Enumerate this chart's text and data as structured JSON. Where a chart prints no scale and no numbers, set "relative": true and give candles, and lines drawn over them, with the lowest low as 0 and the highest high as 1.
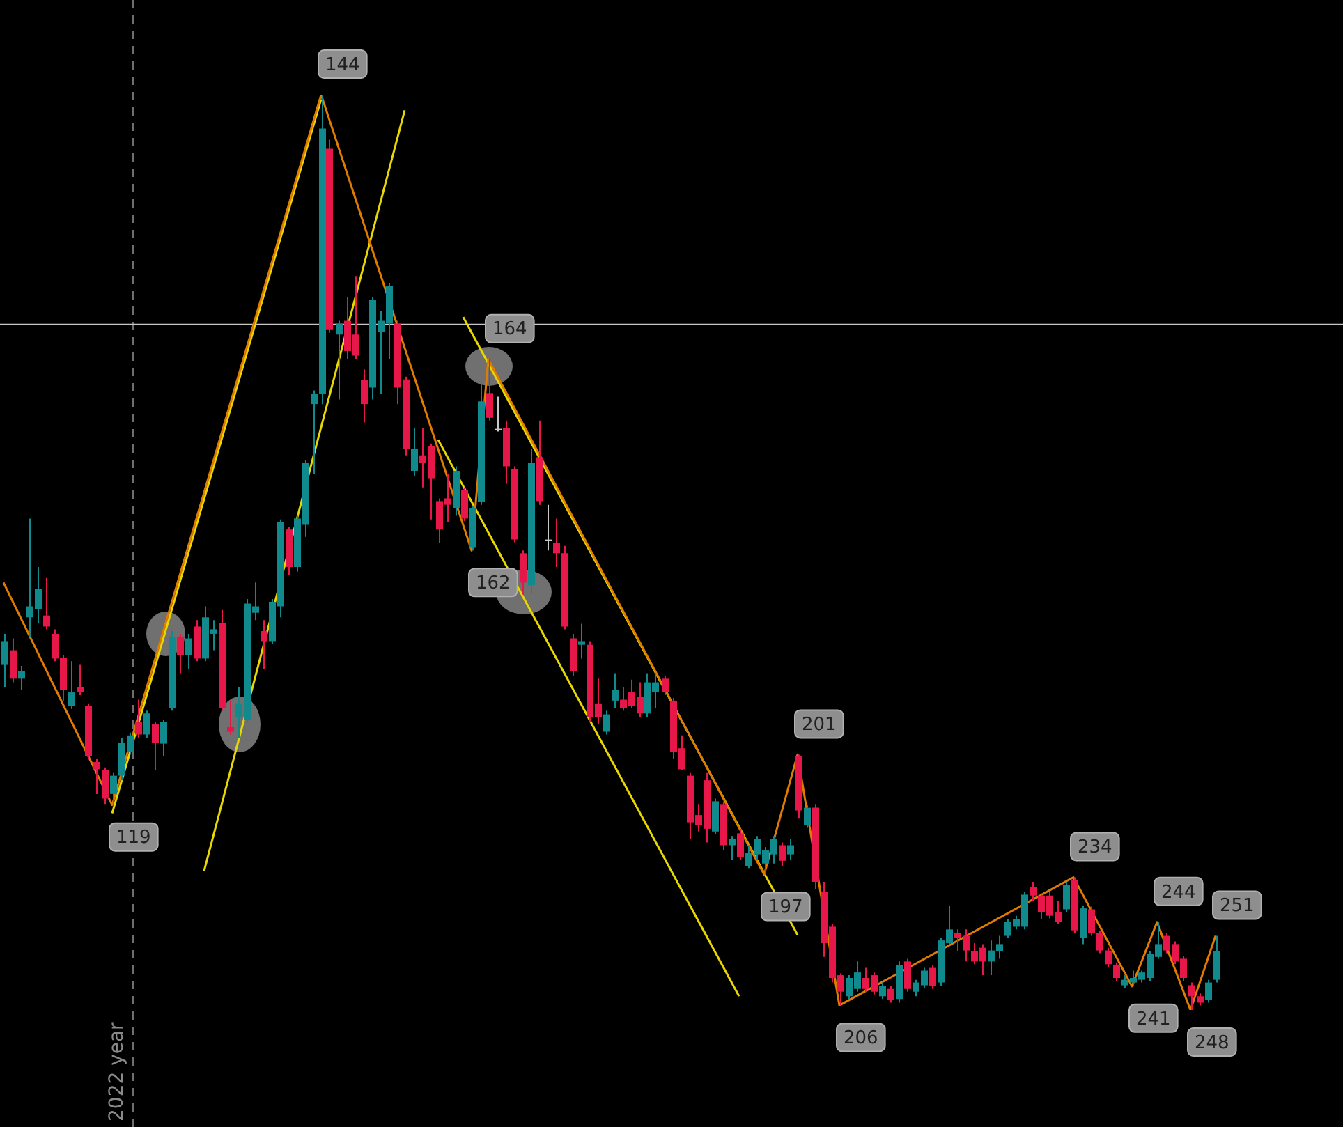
{
  "chart_data": {
    "type": "candlestick",
    "relative": true,
    "categories": [
      null,
      null,
      null,
      null,
      null,
      null,
      null,
      null,
      null,
      null,
      null,
      null,
      null,
      null,
      null,
      null,
      null,
      null,
      null,
      null,
      null,
      null,
      null,
      null,
      null,
      null,
      null,
      null,
      null,
      null,
      null,
      null,
      null,
      null,
      null,
      null,
      null,
      null,
      null,
      null,
      null,
      null,
      null,
      null,
      null,
      null,
      null,
      null,
      null,
      null,
      null,
      null,
      null,
      null,
      null,
      null,
      null,
      null,
      null,
      null,
      null,
      null,
      null,
      null,
      null,
      null,
      null,
      null,
      null,
      null,
      null,
      null,
      null,
      null,
      null,
      null,
      null,
      null,
      null,
      null,
      null,
      null,
      null,
      null,
      null,
      null,
      null,
      null,
      null,
      null,
      null,
      null,
      null,
      null,
      null,
      null,
      null,
      null,
      null,
      null,
      null,
      null,
      null,
      null,
      null,
      null,
      null,
      null,
      null,
      null,
      null,
      null,
      null,
      null,
      null,
      null,
      null,
      null,
      null,
      null,
      null,
      null,
      null,
      null,
      null,
      null,
      null,
      null,
      null,
      null,
      null,
      null,
      null,
      null,
      null,
      null,
      null,
      null,
      null,
      null,
      null,
      null,
      null,
      null,
      null,
      null
    ],
    "ohlc": [
      [
        0.377,
        0.411,
        0.353,
        0.403
      ],
      [
        0.393,
        0.406,
        0.358,
        0.362
      ],
      [
        0.362,
        0.376,
        0.35,
        0.37
      ],
      [
        0.429,
        0.537,
        0.408,
        0.441
      ],
      [
        0.438,
        0.484,
        0.423,
        0.46
      ],
      [
        0.431,
        0.472,
        0.416,
        0.419
      ],
      [
        0.411,
        0.416,
        0.381,
        0.384
      ],
      [
        0.385,
        0.388,
        0.338,
        0.35
      ],
      [
        0.332,
        0.381,
        0.329,
        0.347
      ],
      [
        0.353,
        0.377,
        0.344,
        0.347
      ],
      [
        0.332,
        0.335,
        0.274,
        0.277
      ],
      [
        0.271,
        0.274,
        0.236,
        0.263
      ],
      [
        0.262,
        0.265,
        0.225,
        0.231
      ],
      [
        0.236,
        0.259,
        0.224,
        0.256
      ],
      [
        0.256,
        0.297,
        0.251,
        0.292
      ],
      [
        0.282,
        0.303,
        0.279,
        0.3
      ],
      [
        0.315,
        0.339,
        0.297,
        0.301
      ],
      [
        0.301,
        0.327,
        0.297,
        0.324
      ],
      [
        0.312,
        0.315,
        0.262,
        0.292
      ],
      [
        0.291,
        0.317,
        0.277,
        0.315
      ],
      [
        0.33,
        0.414,
        0.327,
        0.408
      ],
      [
        0.408,
        0.411,
        0.368,
        0.388
      ],
      [
        0.388,
        0.411,
        0.373,
        0.406
      ],
      [
        0.419,
        0.426,
        0.381,
        0.384
      ],
      [
        0.384,
        0.441,
        0.381,
        0.429
      ],
      [
        0.411,
        0.426,
        0.393,
        0.416
      ],
      [
        0.423,
        0.437,
        0.327,
        0.33
      ],
      [
        0.309,
        0.338,
        0.301,
        0.304
      ],
      [
        0.32,
        0.353,
        0.297,
        0.335
      ],
      [
        0.317,
        0.449,
        0.314,
        0.444
      ],
      [
        0.434,
        0.467,
        0.426,
        0.441
      ],
      [
        0.414,
        0.426,
        0.373,
        0.403
      ],
      [
        0.403,
        0.449,
        0.4,
        0.446
      ],
      [
        0.441,
        0.536,
        0.429,
        0.533
      ],
      [
        0.525,
        0.528,
        0.475,
        0.484
      ],
      [
        0.484,
        0.54,
        0.479,
        0.537
      ],
      [
        0.53,
        0.601,
        0.517,
        0.598
      ],
      [
        0.662,
        0.677,
        0.586,
        0.673
      ],
      [
        0.673,
        1,
        0.662,
        0.963
      ],
      [
        0.941,
        0.951,
        0.74,
        0.743
      ],
      [
        0.738,
        0.753,
        0.667,
        0.75
      ],
      [
        0.753,
        0.779,
        0.711,
        0.72
      ],
      [
        0.738,
        0.802,
        0.711,
        0.715
      ],
      [
        0.688,
        0.7,
        0.642,
        0.662
      ],
      [
        0.68,
        0.779,
        0.667,
        0.776
      ],
      [
        0.741,
        0.764,
        0.673,
        0.753
      ],
      [
        0.75,
        0.794,
        0.711,
        0.791
      ],
      [
        0.75,
        0.753,
        0.662,
        0.68
      ],
      [
        0.689,
        0.692,
        0.606,
        0.613
      ],
      [
        0.589,
        0.636,
        0.583,
        0.613
      ],
      [
        0.606,
        0.636,
        0.571,
        0.598
      ],
      [
        0.616,
        0.619,
        0.536,
        0.581
      ],
      [
        0.556,
        0.559,
        0.51,
        0.525
      ],
      [
        0.559,
        0.586,
        0.533,
        0.552
      ],
      [
        0.548,
        0.594,
        0.54,
        0.589
      ],
      [
        0.568,
        0.571,
        0.534,
        0.537
      ],
      [
        0.505,
        0.551,
        0.502,
        0.548
      ],
      [
        0.555,
        0.685,
        0.552,
        0.665
      ],
      [
        0.674,
        0.711,
        0.644,
        0.647
      ],
      [
        0.635,
        0.67,
        0.632,
        0.635
      ],
      [
        0.636,
        0.644,
        0.575,
        0.594
      ],
      [
        0.591,
        0.594,
        0.511,
        0.514
      ],
      [
        0.499,
        0.502,
        0.454,
        0.467
      ],
      [
        0.464,
        0.613,
        0.454,
        0.598
      ],
      [
        0.604,
        0.644,
        0.552,
        0.556
      ],
      [
        0.514,
        0.552,
        0.502,
        0.514
      ],
      [
        0.51,
        0.537,
        0.484,
        0.499
      ],
      [
        0.499,
        0.507,
        0.416,
        0.419
      ],
      [
        0.406,
        0.411,
        0.365,
        0.37
      ],
      [
        0.399,
        0.422,
        0.384,
        0.403
      ],
      [
        0.399,
        0.403,
        0.315,
        0.32
      ],
      [
        0.335,
        0.362,
        0.312,
        0.32
      ],
      [
        0.304,
        0.327,
        0.301,
        0.323
      ],
      [
        0.338,
        0.368,
        0.33,
        0.35
      ],
      [
        0.339,
        0.353,
        0.327,
        0.33
      ],
      [
        0.347,
        0.361,
        0.33,
        0.332
      ],
      [
        0.342,
        0.358,
        0.32,
        0.324
      ],
      [
        0.324,
        0.368,
        0.32,
        0.358
      ],
      [
        0.347,
        0.368,
        0.33,
        0.358
      ],
      [
        0.362,
        0.365,
        0.344,
        0.347
      ],
      [
        0.338,
        0.341,
        0.274,
        0.282
      ],
      [
        0.286,
        0.3,
        0.262,
        0.263
      ],
      [
        0.256,
        0.259,
        0.187,
        0.205
      ],
      [
        0.213,
        0.225,
        0.195,
        0.202
      ],
      [
        0.251,
        0.259,
        0.183,
        0.198
      ],
      [
        0.195,
        0.231,
        0.192,
        0.228
      ],
      [
        0.225,
        0.228,
        0.175,
        0.18
      ],
      [
        0.18,
        0.19,
        0.164,
        0.187
      ],
      [
        0.193,
        0.198,
        0.164,
        0.167
      ],
      [
        0.157,
        0.18,
        0.155,
        0.172
      ],
      [
        0.17,
        0.19,
        0.164,
        0.187
      ],
      [
        0.16,
        0.178,
        0.148,
        0.175
      ],
      [
        0.17,
        0.19,
        0.16,
        0.187
      ],
      [
        0.18,
        0.183,
        0.157,
        0.163
      ],
      [
        0.17,
        0.187,
        0.164,
        0.18
      ],
      [
        0.277,
        0.279,
        0.209,
        0.218
      ],
      [
        0.202,
        0.224,
        0.199,
        0.221
      ],
      [
        0.221,
        0.225,
        0.132,
        0.14
      ],
      [
        0.129,
        0.14,
        0.058,
        0.073
      ],
      [
        0.091,
        0.094,
        0.03,
        0.035
      ],
      [
        0.038,
        0.04,
        0.005,
        0.02
      ],
      [
        0.015,
        0.038,
        0.012,
        0.035
      ],
      [
        0.023,
        0.053,
        0.02,
        0.041
      ],
      [
        0.035,
        0.046,
        0.02,
        0.023
      ],
      [
        0.038,
        0.041,
        0.017,
        0.02
      ],
      [
        0.015,
        0.03,
        0.012,
        0.026
      ],
      [
        0.023,
        0.026,
        0.008,
        0.011
      ],
      [
        0.012,
        0.053,
        0.008,
        0.049
      ],
      [
        0.053,
        0.056,
        0.02,
        0.023
      ],
      [
        0.02,
        0.033,
        0.015,
        0.03
      ],
      [
        0.027,
        0.046,
        0.024,
        0.043
      ],
      [
        0.046,
        0.049,
        0.023,
        0.026
      ],
      [
        0.03,
        0.079,
        0.026,
        0.076
      ],
      [
        0.073,
        0.114,
        0.072,
        0.088
      ],
      [
        0.084,
        0.088,
        0.064,
        0.079
      ],
      [
        0.081,
        0.088,
        0.053,
        0.065
      ],
      [
        0.064,
        0.073,
        0.05,
        0.053
      ],
      [
        0.068,
        0.072,
        0.038,
        0.053
      ],
      [
        0.053,
        0.076,
        0.038,
        0.065
      ],
      [
        0.064,
        0.081,
        0.056,
        0.072
      ],
      [
        0.081,
        0.099,
        0.079,
        0.096
      ],
      [
        0.091,
        0.103,
        0.088,
        0.099
      ],
      [
        0.091,
        0.129,
        0.088,
        0.126
      ],
      [
        0.134,
        0.14,
        0.119,
        0.125
      ],
      [
        0.125,
        0.126,
        0.099,
        0.107
      ],
      [
        0.125,
        0.129,
        0.1,
        0.103
      ],
      [
        0.107,
        0.119,
        0.094,
        0.096
      ],
      [
        0.11,
        0.14,
        0.107,
        0.137
      ],
      [
        0.142,
        0.145,
        0.084,
        0.087
      ],
      [
        0.079,
        0.114,
        0.072,
        0.111
      ],
      [
        0.11,
        0.113,
        0.081,
        0.084
      ],
      [
        0.084,
        0.087,
        0.062,
        0.065
      ],
      [
        0.065,
        0.068,
        0.047,
        0.05
      ],
      [
        0.049,
        0.052,
        0.032,
        0.035
      ],
      [
        0.027,
        0.038,
        0.024,
        0.033
      ],
      [
        0.03,
        0.043,
        0.026,
        0.035
      ],
      [
        0.033,
        0.043,
        0.03,
        0.041
      ],
      [
        0.035,
        0.064,
        0.032,
        0.061
      ],
      [
        0.058,
        0.096,
        0.056,
        0.072
      ],
      [
        0.081,
        0.084,
        0.062,
        0.065
      ],
      [
        0.072,
        0.075,
        0.05,
        0.053
      ],
      [
        0.056,
        0.059,
        0.032,
        0.035
      ],
      [
        0.027,
        0.03,
        0,
        0.015
      ],
      [
        0.015,
        0.018,
        0.005,
        0.008
      ],
      [
        0.011,
        0.033,
        0.008,
        0.03
      ],
      [
        0.033,
        0.081,
        0.03,
        0.064
      ]
    ],
    "colors": [
      "#108a8c",
      "#e8174a",
      "#108a8c",
      "#108a8c",
      "#108a8c",
      "#e8174a",
      "#e8174a",
      "#e8174a",
      "#108a8c",
      "#e8174a",
      "#e8174a",
      "#e8174a",
      "#e8174a",
      "#108a8c",
      "#108a8c",
      "#108a8c",
      "#e8174a",
      "#108a8c",
      "#e8174a",
      "#108a8c",
      "#108a8c",
      "#e8174a",
      "#108a8c",
      "#e8174a",
      "#108a8c",
      "#108a8c",
      "#e8174a",
      "#e8174a",
      "#108a8c",
      "#108a8c",
      "#108a8c",
      "#e8174a",
      "#108a8c",
      "#108a8c",
      "#e8174a",
      "#108a8c",
      "#108a8c",
      "#108a8c",
      "#108a8c",
      "#e8174a",
      "#108a8c",
      "#e8174a",
      "#e8174a",
      "#e8174a",
      "#108a8c",
      "#108a8c",
      "#108a8c",
      "#e8174a",
      "#e8174a",
      "#108a8c",
      "#e8174a",
      "#e8174a",
      "#e8174a",
      "#e8174a",
      "#108a8c",
      "#e8174a",
      "#108a8c",
      "#108a8c",
      "#e8174a",
      "#c8c8c8",
      "#e8174a",
      "#e8174a",
      "#e8174a",
      "#108a8c",
      "#e8174a",
      "#c8c8c8",
      "#e8174a",
      "#e8174a",
      "#e8174a",
      "#108a8c",
      "#e8174a",
      "#e8174a",
      "#108a8c",
      "#108a8c",
      "#e8174a",
      "#e8174a",
      "#e8174a",
      "#108a8c",
      "#108a8c",
      "#e8174a",
      "#e8174a",
      "#e8174a",
      "#e8174a",
      "#e8174a",
      "#e8174a",
      "#108a8c",
      "#e8174a",
      "#108a8c",
      "#e8174a",
      "#108a8c",
      "#108a8c",
      "#108a8c",
      "#108a8c",
      "#e8174a",
      "#108a8c",
      "#e8174a",
      "#108a8c",
      "#e8174a",
      "#e8174a",
      "#e8174a",
      "#e8174a",
      "#108a8c",
      "#108a8c",
      "#e8174a",
      "#e8174a",
      "#108a8c",
      "#e8174a",
      "#108a8c",
      "#e8174a",
      "#108a8c",
      "#108a8c",
      "#e8174a",
      "#108a8c",
      "#108a8c",
      "#e8174a",
      "#e8174a",
      "#e8174a",
      "#e8174a",
      "#108a8c",
      "#108a8c",
      "#108a8c",
      "#108a8c",
      "#108a8c",
      "#e8174a",
      "#e8174a",
      "#e8174a",
      "#e8174a",
      "#108a8c",
      "#e8174a",
      "#108a8c",
      "#e8174a",
      "#e8174a",
      "#e8174a",
      "#e8174a",
      "#108a8c",
      "#108a8c",
      "#108a8c",
      "#108a8c",
      "#108a8c",
      "#e8174a",
      "#e8174a",
      "#e8174a",
      "#e8174a",
      "#e8174a",
      "#108a8c",
      "#108a8c"
    ],
    "series": [
      {
        "type": "line",
        "color": "#e07b00",
        "values": [
          0.467,
          null,
          null,
          null,
          null,
          null,
          null,
          null,
          null,
          null,
          null,
          null,
          null,
          0.224,
          null,
          null,
          null,
          null,
          null,
          null,
          null,
          null,
          null,
          null,
          null,
          null,
          null,
          null,
          null,
          null,
          null,
          null,
          null,
          null,
          null,
          null,
          null,
          null,
          1,
          null,
          null,
          null,
          null,
          null,
          null,
          null,
          null,
          null,
          null,
          null,
          null,
          null,
          null,
          null,
          null,
          null,
          0.502,
          null,
          0.711,
          null,
          null,
          null,
          null,
          null,
          null,
          null,
          null,
          null,
          null,
          null,
          null,
          null,
          null,
          null,
          null,
          null,
          null,
          null,
          null,
          null,
          null,
          null,
          null,
          null,
          null,
          null,
          null,
          null,
          null,
          null,
          null,
          0.148,
          null,
          null,
          null,
          0.279,
          null,
          null,
          null,
          null,
          0.005,
          null,
          null,
          null,
          null,
          null,
          null,
          null,
          null,
          null,
          null,
          null,
          null,
          null,
          null,
          null,
          null,
          null,
          null,
          null,
          null,
          null,
          null,
          null,
          null,
          null,
          null,
          null,
          0.145,
          null,
          null,
          null,
          null,
          null,
          null,
          0.026,
          null,
          null,
          0.096,
          null,
          null,
          null,
          0,
          null,
          null,
          0.081
        ],
        "name": null
      },
      {
        "type": "line",
        "color": "#e8d800",
        "values": [
          null,
          null,
          null,
          null,
          null,
          null,
          null,
          null,
          null,
          null,
          null,
          null,
          null,
          0.215,
          null,
          null,
          null,
          null,
          null,
          null,
          null,
          null,
          null,
          null,
          null,
          null,
          null,
          null,
          null,
          null,
          null,
          null,
          null,
          null,
          null,
          null,
          null,
          null,
          0.995,
          null,
          null,
          null,
          null,
          null,
          null,
          null,
          null,
          null,
          null,
          null,
          null,
          null,
          null,
          null,
          null,
          null,
          null,
          null,
          null,
          null,
          null,
          null,
          null,
          null,
          null,
          null,
          null,
          null,
          null,
          null,
          null,
          null,
          null,
          null,
          null,
          null,
          null,
          null,
          null,
          null,
          null,
          null,
          null,
          null,
          null,
          null,
          null,
          null,
          null,
          null,
          null,
          null,
          null,
          null,
          null,
          null,
          null,
          null,
          null,
          null,
          null,
          null,
          null,
          null,
          null,
          null,
          null,
          null,
          null,
          null,
          null,
          null,
          null,
          null,
          null,
          null,
          null,
          null,
          null,
          null,
          null,
          null,
          null,
          null,
          null,
          null,
          null,
          null,
          null,
          null,
          null,
          null,
          null,
          null,
          null,
          null,
          null,
          null,
          null,
          null,
          null,
          null,
          null,
          null,
          null,
          null
        ]
      },
      {
        "type": "line",
        "color": "#e8d800",
        "values": [
          null,
          null,
          null,
          null,
          null,
          null,
          null,
          null,
          null,
          null,
          null,
          null,
          null,
          null,
          null,
          null,
          null,
          null,
          null,
          null,
          null,
          null,
          null,
          null,
          0.152,
          null,
          null,
          null,
          null,
          null,
          null,
          null,
          null,
          null,
          null,
          null,
          null,
          null,
          null,
          null,
          null,
          null,
          null,
          null,
          null,
          null,
          null,
          null,
          0.983,
          null,
          null,
          null,
          null,
          null,
          null,
          null,
          null,
          null,
          null,
          null,
          null,
          null,
          null,
          null,
          null,
          null,
          null,
          null,
          null,
          null,
          null,
          null,
          null,
          null,
          null,
          null,
          null,
          null,
          null,
          null,
          null,
          null,
          null,
          null,
          null,
          null,
          null,
          null,
          null,
          null,
          null,
          null,
          null,
          null,
          null,
          null,
          null,
          null,
          null,
          null,
          null,
          null,
          null,
          null,
          null,
          null,
          null,
          null,
          null,
          null,
          null,
          null,
          null,
          null,
          null,
          null,
          null,
          null,
          null,
          null,
          null,
          null,
          null,
          null,
          null,
          null,
          null,
          null,
          null,
          null,
          null,
          null,
          null,
          null,
          null,
          null,
          null,
          null,
          null,
          null,
          null,
          null,
          null,
          null,
          null,
          null
        ]
      },
      {
        "type": "line",
        "color": "#e8d800",
        "values": [
          null,
          null,
          null,
          null,
          null,
          null,
          null,
          null,
          null,
          null,
          null,
          null,
          null,
          null,
          null,
          null,
          null,
          null,
          null,
          null,
          null,
          null,
          null,
          null,
          null,
          null,
          null,
          null,
          null,
          null,
          null,
          null,
          null,
          null,
          null,
          null,
          null,
          null,
          null,
          null,
          null,
          null,
          null,
          null,
          null,
          null,
          null,
          null,
          null,
          null,
          null,
          null,
          null,
          null,
          null,
          0.757,
          null,
          null,
          null,
          null,
          null,
          null,
          null,
          null,
          null,
          null,
          null,
          null,
          null,
          null,
          null,
          null,
          null,
          null,
          null,
          null,
          null,
          null,
          null,
          null,
          null,
          null,
          null,
          null,
          null,
          null,
          null,
          null,
          null,
          null,
          null,
          null,
          null,
          null,
          null,
          0.082,
          null,
          null,
          null,
          null,
          null,
          null,
          null,
          null,
          null,
          null,
          null,
          null,
          null,
          null,
          null,
          null,
          null,
          null,
          null,
          null,
          null,
          null,
          null,
          null,
          null,
          null,
          null,
          null,
          null,
          null,
          null,
          null,
          null,
          null,
          null,
          null,
          null,
          null,
          null,
          null,
          null,
          null,
          null,
          null,
          null,
          null,
          null,
          null,
          null,
          null
        ]
      },
      {
        "type": "line",
        "color": "#e8d800",
        "values": [
          null,
          null,
          null,
          null,
          null,
          null,
          null,
          null,
          null,
          null,
          null,
          null,
          null,
          null,
          null,
          null,
          null,
          null,
          null,
          null,
          null,
          null,
          null,
          null,
          null,
          null,
          null,
          null,
          null,
          null,
          null,
          null,
          null,
          null,
          null,
          null,
          null,
          null,
          null,
          null,
          null,
          null,
          null,
          null,
          null,
          null,
          null,
          null,
          null,
          null,
          null,
          null,
          0.623,
          null,
          null,
          null,
          null,
          null,
          null,
          null,
          null,
          null,
          null,
          null,
          null,
          null,
          null,
          null,
          null,
          null,
          null,
          null,
          null,
          null,
          null,
          null,
          null,
          null,
          null,
          null,
          null,
          null,
          null,
          null,
          null,
          null,
          null,
          null,
          0.015,
          null,
          null,
          null,
          null,
          null,
          null,
          null,
          null,
          null,
          null,
          null,
          null,
          null,
          null,
          null,
          null,
          null,
          null,
          null,
          null,
          null,
          null,
          null,
          null,
          null,
          null,
          null,
          null,
          null,
          null,
          null,
          null,
          null,
          null,
          null,
          null,
          null,
          null,
          null,
          null,
          null,
          null,
          null,
          null,
          null,
          null,
          null,
          null,
          null,
          null,
          null,
          null,
          null,
          null,
          null,
          null,
          null
        ]
      }
    ],
    "ref_lines": [
      {
        "axis": "y",
        "value": 0.749,
        "color": "#c8c8c8",
        "line_style": "solid"
      }
    ],
    "annotations": [
      "2022 year",
      "119",
      "144",
      "162",
      "164",
      "197",
      "201",
      "206",
      "234",
      "241",
      "244",
      "248",
      "251"
    ]
  }
}
